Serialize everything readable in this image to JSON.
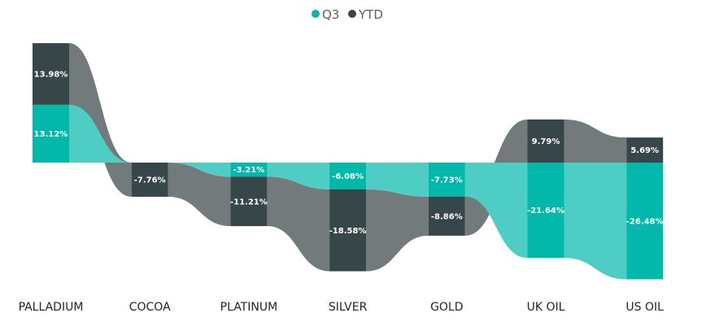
{
  "chart_data": {
    "type": "ribbon",
    "categories": [
      "PALLADIUM",
      "COCOA",
      "PLATINUM",
      "SILVER",
      "GOLD",
      "UK OIL",
      "US OIL"
    ],
    "series": [
      {
        "name": "Q3",
        "values": [
          13.12,
          0,
          -3.21,
          -6.08,
          -7.73,
          -21.64,
          -26.48
        ],
        "labels": [
          "13.12%",
          "",
          "-3.21%",
          "-6.08%",
          "-7.73%",
          "-21.64%",
          "-26.48%"
        ],
        "color": "#01b8aa"
      },
      {
        "name": "YTD",
        "values": [
          13.98,
          -7.76,
          -11.21,
          -18.58,
          -8.86,
          9.79,
          5.69
        ],
        "labels": [
          "13.98%",
          "-7.76%",
          "-11.21%",
          "-18.58%",
          "-8.86%",
          "9.79%",
          "5.69%"
        ],
        "color": "#374649"
      }
    ],
    "legend": {
      "position": "top-center"
    },
    "colors": {
      "q3_ribbon": "#4ecdc4",
      "ytd_ribbon": "#737a7c",
      "category_text": "#252423",
      "legend_text": "#605e5c"
    }
  }
}
